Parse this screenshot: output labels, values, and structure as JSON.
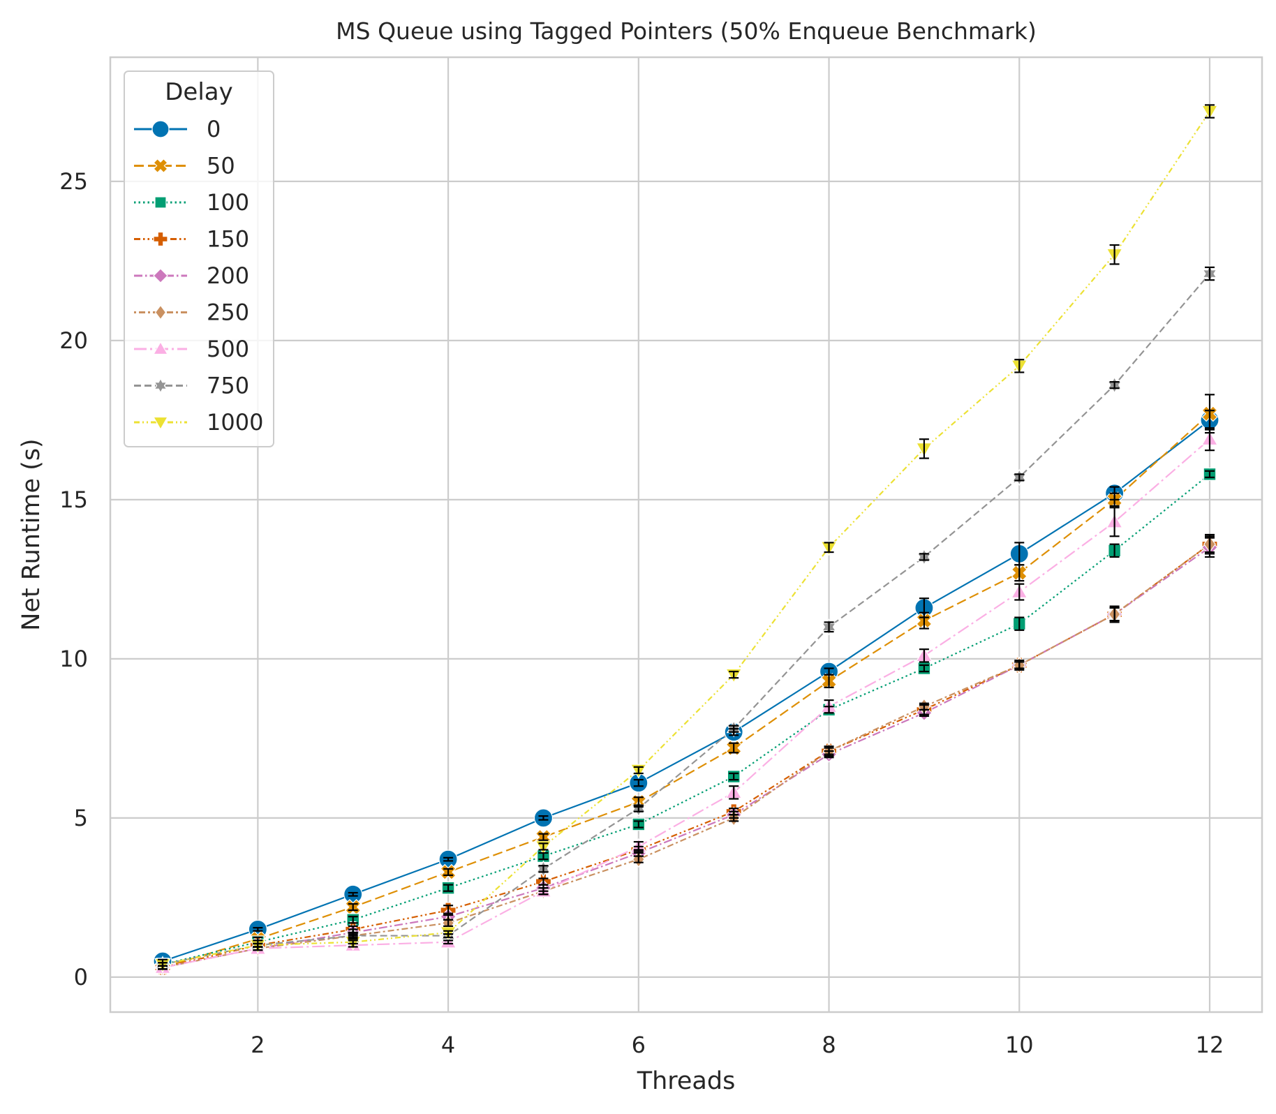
{
  "chart_data": {
    "type": "line",
    "title": "MS Queue using Tagged Pointers (50% Enqueue Benchmark)",
    "xlabel": "Threads",
    "ylabel": "Net Runtime (s)",
    "xlim": [
      0.45,
      12.55
    ],
    "ylim": [
      -1.1,
      28.9
    ],
    "xticks": [
      2,
      4,
      6,
      8,
      10,
      12
    ],
    "yticks": [
      0,
      5,
      10,
      15,
      20,
      25
    ],
    "grid": true,
    "legend": {
      "title": "Delay",
      "placement": "top-left"
    },
    "x": [
      1,
      2,
      3,
      4,
      5,
      6,
      7,
      8,
      9,
      10,
      11,
      12
    ],
    "series": [
      {
        "name": "0",
        "color": "#0173b2",
        "marker": "circle",
        "dash": "solid",
        "values": [
          0.5,
          1.5,
          2.6,
          3.7,
          5.0,
          6.1,
          7.7,
          9.6,
          11.6,
          13.3,
          15.2,
          17.5
        ]
      },
      {
        "name": "50",
        "color": "#de8f05",
        "marker": "x-filled",
        "dash": "dashed",
        "values": [
          0.3,
          1.2,
          2.2,
          3.3,
          4.4,
          5.5,
          7.2,
          9.3,
          11.2,
          12.7,
          15.0,
          17.7
        ]
      },
      {
        "name": "100",
        "color": "#029e73",
        "marker": "square",
        "dash": "dotted",
        "values": [
          0.4,
          1.1,
          1.8,
          2.8,
          3.8,
          4.8,
          6.3,
          8.4,
          9.7,
          11.1,
          13.4,
          15.8
        ]
      },
      {
        "name": "150",
        "color": "#d55e00",
        "marker": "plus-filled",
        "dash": "dashdotdot",
        "values": [
          0.3,
          1.0,
          1.5,
          2.1,
          3.0,
          4.0,
          5.2,
          7.1,
          8.4,
          9.8,
          11.4,
          13.6
        ]
      },
      {
        "name": "200",
        "color": "#cc78bc",
        "marker": "diamond",
        "dash": "dashdot",
        "values": [
          0.3,
          0.9,
          1.4,
          1.9,
          2.8,
          3.9,
          5.1,
          7.0,
          8.3,
          9.8,
          11.4,
          13.5
        ]
      },
      {
        "name": "250",
        "color": "#ca9161",
        "marker": "diamond-thin",
        "dash": "dotdash",
        "values": [
          0.3,
          0.9,
          1.3,
          1.7,
          2.7,
          3.7,
          5.0,
          7.1,
          8.5,
          9.8,
          11.4,
          13.6
        ]
      },
      {
        "name": "500",
        "color": "#fbafe4",
        "marker": "triangle-up",
        "dash": "longdashdot",
        "values": [
          0.3,
          0.9,
          1.0,
          1.1,
          2.7,
          4.1,
          5.8,
          8.5,
          10.1,
          12.1,
          14.3,
          16.9
        ]
      },
      {
        "name": "750",
        "color": "#949494",
        "marker": "star",
        "dash": "dashed2",
        "values": [
          0.4,
          1.0,
          1.3,
          1.3,
          3.4,
          5.3,
          7.8,
          11.0,
          13.2,
          15.7,
          18.6,
          22.1
        ]
      },
      {
        "name": "1000",
        "color": "#ece133",
        "marker": "triangle-down",
        "dash": "dashdot2",
        "values": [
          0.4,
          1.0,
          1.1,
          1.4,
          4.1,
          6.5,
          9.5,
          13.5,
          16.6,
          19.2,
          22.7,
          27.2
        ]
      }
    ],
    "error_bars": {
      "color": "#000000",
      "half_width": [
        [
          0.05,
          0.05,
          0.05,
          0.05,
          0.06,
          0.1,
          0.1,
          0.1,
          0.3,
          0.35,
          0.2,
          0.3
        ],
        [
          0.05,
          0.05,
          0.1,
          0.1,
          0.1,
          0.15,
          0.15,
          0.2,
          0.25,
          0.25,
          0.2,
          0.6
        ],
        [
          0.05,
          0.05,
          0.1,
          0.1,
          0.1,
          0.1,
          0.1,
          0.1,
          0.1,
          0.2,
          0.2,
          0.1
        ],
        [
          0.05,
          0.05,
          0.1,
          0.15,
          0.1,
          0.1,
          0.1,
          0.15,
          0.15,
          0.15,
          0.25,
          0.25
        ],
        [
          0.05,
          0.05,
          0.1,
          0.1,
          0.1,
          0.1,
          0.1,
          0.1,
          0.1,
          0.1,
          0.2,
          0.3
        ],
        [
          0.05,
          0.05,
          0.1,
          0.1,
          0.1,
          0.1,
          0.1,
          0.1,
          0.1,
          0.1,
          0.2,
          0.3
        ],
        [
          0.05,
          0.05,
          0.05,
          0.05,
          0.1,
          0.15,
          0.2,
          0.2,
          0.2,
          0.25,
          0.45,
          0.35
        ],
        [
          0.05,
          0.05,
          0.05,
          0.05,
          0.1,
          0.1,
          0.1,
          0.15,
          0.1,
          0.1,
          0.1,
          0.2
        ],
        [
          0.05,
          0.05,
          0.05,
          0.05,
          0.1,
          0.1,
          0.1,
          0.15,
          0.3,
          0.2,
          0.3,
          0.2
        ]
      ]
    }
  }
}
